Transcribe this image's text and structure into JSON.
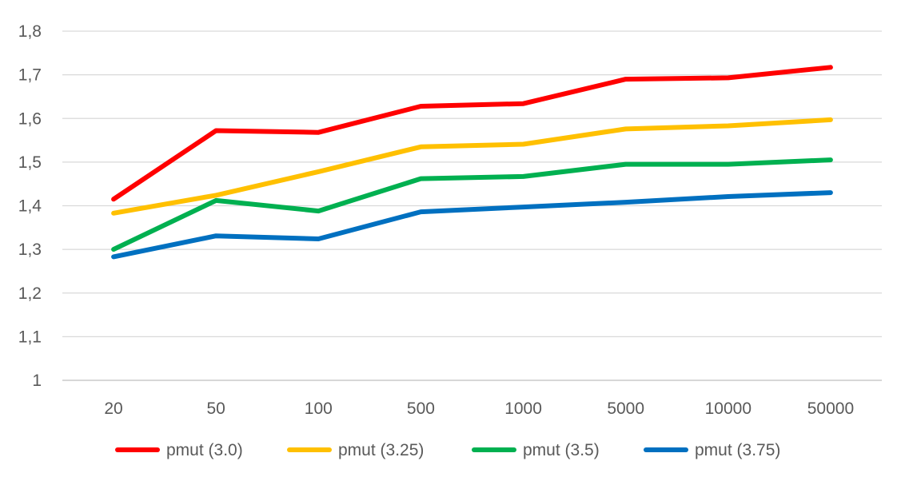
{
  "chart_data": {
    "type": "line",
    "title": "",
    "xlabel": "",
    "ylabel": "",
    "categories": [
      "20",
      "50",
      "100",
      "500",
      "1000",
      "5000",
      "10000",
      "50000"
    ],
    "ylim": [
      1,
      1.8
    ],
    "yticks": [
      "1",
      "1,1",
      "1,2",
      "1,3",
      "1,4",
      "1,5",
      "1,6",
      "1,7",
      "1,8"
    ],
    "grid": true,
    "legend_position": "bottom",
    "series": [
      {
        "name": "pmut (3.0)",
        "color": "#FF0000",
        "values": [
          1.415,
          1.572,
          1.568,
          1.628,
          1.634,
          1.69,
          1.693,
          1.717
        ]
      },
      {
        "name": "pmut (3.25)",
        "color": "#FFC000",
        "values": [
          1.383,
          1.424,
          1.478,
          1.535,
          1.541,
          1.576,
          1.583,
          1.597
        ]
      },
      {
        "name": "pmut (3.5)",
        "color": "#00B050",
        "values": [
          1.3,
          1.412,
          1.388,
          1.462,
          1.467,
          1.495,
          1.495,
          1.505
        ]
      },
      {
        "name": "pmut (3.75)",
        "color": "#0070C0",
        "values": [
          1.283,
          1.331,
          1.324,
          1.386,
          1.397,
          1.408,
          1.421,
          1.43
        ]
      }
    ]
  }
}
